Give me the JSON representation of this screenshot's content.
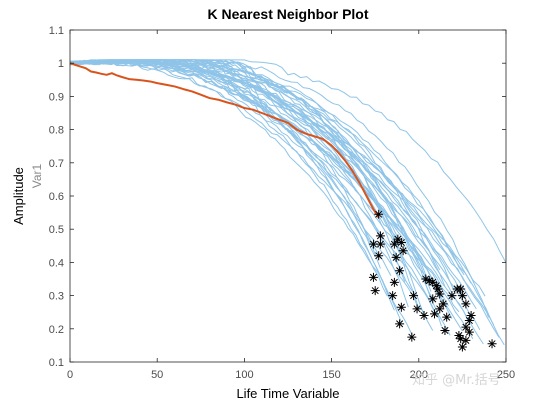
{
  "chart_data": {
    "type": "line",
    "title": "K Nearest Neighbor Plot",
    "xlabel": "Life Time Variable",
    "ylabel": "Amplitude",
    "y2label": "Var1",
    "xlim": [
      0,
      250
    ],
    "ylim": [
      0.1,
      1.1
    ],
    "xticks": [
      0,
      50,
      100,
      150,
      200,
      250
    ],
    "yticks": [
      0.1,
      0.2,
      0.3,
      0.4,
      0.5,
      0.6,
      0.7,
      0.8,
      0.9,
      1,
      1.1
    ],
    "xtick_labels": [
      "0",
      "50",
      "100",
      "150",
      "200",
      "250"
    ],
    "ytick_labels": [
      "0.1",
      "0.2",
      "0.3",
      "0.4",
      "0.5",
      "0.6",
      "0.7",
      "0.8",
      "0.9",
      "1",
      "1.1"
    ],
    "grid": false,
    "colors": {
      "neighbors": "#8fc4e8",
      "highlight": "#d9541c",
      "markers": "#000000"
    },
    "neighbor_curves": [
      {
        "end_x": 175,
        "end_y": 0.42
      },
      {
        "end_x": 178,
        "end_y": 0.38
      },
      {
        "end_x": 182,
        "end_y": 0.3
      },
      {
        "end_x": 186,
        "end_y": 0.26
      },
      {
        "end_x": 190,
        "end_y": 0.22
      },
      {
        "end_x": 192,
        "end_y": 0.34
      },
      {
        "end_x": 196,
        "end_y": 0.18
      },
      {
        "end_x": 198,
        "end_y": 0.3
      },
      {
        "end_x": 200,
        "end_y": 0.26
      },
      {
        "end_x": 203,
        "end_y": 0.24
      },
      {
        "end_x": 205,
        "end_y": 0.35
      },
      {
        "end_x": 207,
        "end_y": 0.31
      },
      {
        "end_x": 209,
        "end_y": 0.28
      },
      {
        "end_x": 211,
        "end_y": 0.24
      },
      {
        "end_x": 213,
        "end_y": 0.21
      },
      {
        "end_x": 215,
        "end_y": 0.33
      },
      {
        "end_x": 217,
        "end_y": 0.27
      },
      {
        "end_x": 219,
        "end_y": 0.23
      },
      {
        "end_x": 221,
        "end_y": 0.31
      },
      {
        "end_x": 223,
        "end_y": 0.25
      },
      {
        "end_x": 225,
        "end_y": 0.19
      },
      {
        "end_x": 227,
        "end_y": 0.29
      },
      {
        "end_x": 229,
        "end_y": 0.22
      },
      {
        "end_x": 231,
        "end_y": 0.17
      },
      {
        "end_x": 233,
        "end_y": 0.26
      },
      {
        "end_x": 235,
        "end_y": 0.2
      },
      {
        "end_x": 237,
        "end_y": 0.16
      },
      {
        "end_x": 240,
        "end_y": 0.24
      },
      {
        "end_x": 243,
        "end_y": 0.21
      },
      {
        "end_x": 246,
        "end_y": 0.17
      },
      {
        "end_x": 249,
        "end_y": 0.15
      },
      {
        "end_x": 250,
        "end_y": 0.4
      },
      {
        "end_x": 238,
        "end_y": 0.3
      },
      {
        "end_x": 226,
        "end_y": 0.36
      },
      {
        "end_x": 212,
        "end_y": 0.38
      },
      {
        "end_x": 200,
        "end_y": 0.4
      },
      {
        "end_x": 188,
        "end_y": 0.45
      },
      {
        "end_x": 184,
        "end_y": 0.36
      },
      {
        "end_x": 194,
        "end_y": 0.27
      },
      {
        "end_x": 208,
        "end_y": 0.2
      },
      {
        "end_x": 218,
        "end_y": 0.18
      },
      {
        "end_x": 230,
        "end_y": 0.34
      }
    ],
    "highlight_curve": {
      "x": [
        0,
        3,
        6,
        9,
        12,
        15,
        18,
        21,
        24,
        27,
        30,
        34,
        38,
        42,
        46,
        50,
        55,
        60,
        65,
        70,
        75,
        80,
        85,
        90,
        95,
        100,
        105,
        110,
        115,
        120,
        125,
        130,
        135,
        140,
        145,
        150,
        154,
        158,
        162,
        166,
        170,
        174,
        177
      ],
      "y": [
        1.0,
        0.995,
        0.99,
        0.985,
        0.975,
        0.972,
        0.968,
        0.965,
        0.97,
        0.963,
        0.958,
        0.952,
        0.95,
        0.948,
        0.945,
        0.94,
        0.935,
        0.93,
        0.922,
        0.915,
        0.905,
        0.895,
        0.89,
        0.882,
        0.875,
        0.865,
        0.86,
        0.85,
        0.84,
        0.83,
        0.82,
        0.8,
        0.788,
        0.78,
        0.772,
        0.752,
        0.73,
        0.705,
        0.675,
        0.64,
        0.6,
        0.56,
        0.535
      ]
    },
    "markers": [
      {
        "x": 177,
        "y": 0.545
      },
      {
        "x": 174,
        "y": 0.455
      },
      {
        "x": 178,
        "y": 0.48
      },
      {
        "x": 178,
        "y": 0.455
      },
      {
        "x": 177,
        "y": 0.42
      },
      {
        "x": 174,
        "y": 0.355
      },
      {
        "x": 175,
        "y": 0.315
      },
      {
        "x": 188,
        "y": 0.47
      },
      {
        "x": 186,
        "y": 0.455
      },
      {
        "x": 190,
        "y": 0.46
      },
      {
        "x": 191,
        "y": 0.435
      },
      {
        "x": 187,
        "y": 0.415
      },
      {
        "x": 189,
        "y": 0.375
      },
      {
        "x": 186,
        "y": 0.34
      },
      {
        "x": 185,
        "y": 0.3
      },
      {
        "x": 190,
        "y": 0.265
      },
      {
        "x": 189,
        "y": 0.215
      },
      {
        "x": 196,
        "y": 0.175
      },
      {
        "x": 197,
        "y": 0.3
      },
      {
        "x": 199,
        "y": 0.26
      },
      {
        "x": 203,
        "y": 0.24
      },
      {
        "x": 204,
        "y": 0.35
      },
      {
        "x": 206,
        "y": 0.345
      },
      {
        "x": 208,
        "y": 0.34
      },
      {
        "x": 210,
        "y": 0.33
      },
      {
        "x": 211,
        "y": 0.32
      },
      {
        "x": 212,
        "y": 0.305
      },
      {
        "x": 208,
        "y": 0.29
      },
      {
        "x": 209,
        "y": 0.245
      },
      {
        "x": 212,
        "y": 0.26
      },
      {
        "x": 214,
        "y": 0.275
      },
      {
        "x": 216,
        "y": 0.235
      },
      {
        "x": 219,
        "y": 0.3
      },
      {
        "x": 215,
        "y": 0.195
      },
      {
        "x": 222,
        "y": 0.32
      },
      {
        "x": 224,
        "y": 0.32
      },
      {
        "x": 225,
        "y": 0.3
      },
      {
        "x": 227,
        "y": 0.275
      },
      {
        "x": 229,
        "y": 0.225
      },
      {
        "x": 230,
        "y": 0.24
      },
      {
        "x": 227,
        "y": 0.205
      },
      {
        "x": 223,
        "y": 0.18
      },
      {
        "x": 224,
        "y": 0.17
      },
      {
        "x": 225,
        "y": 0.145
      },
      {
        "x": 227,
        "y": 0.165
      },
      {
        "x": 229,
        "y": 0.19
      },
      {
        "x": 242,
        "y": 0.155
      }
    ]
  },
  "watermark": "知乎 @Mr.括号"
}
